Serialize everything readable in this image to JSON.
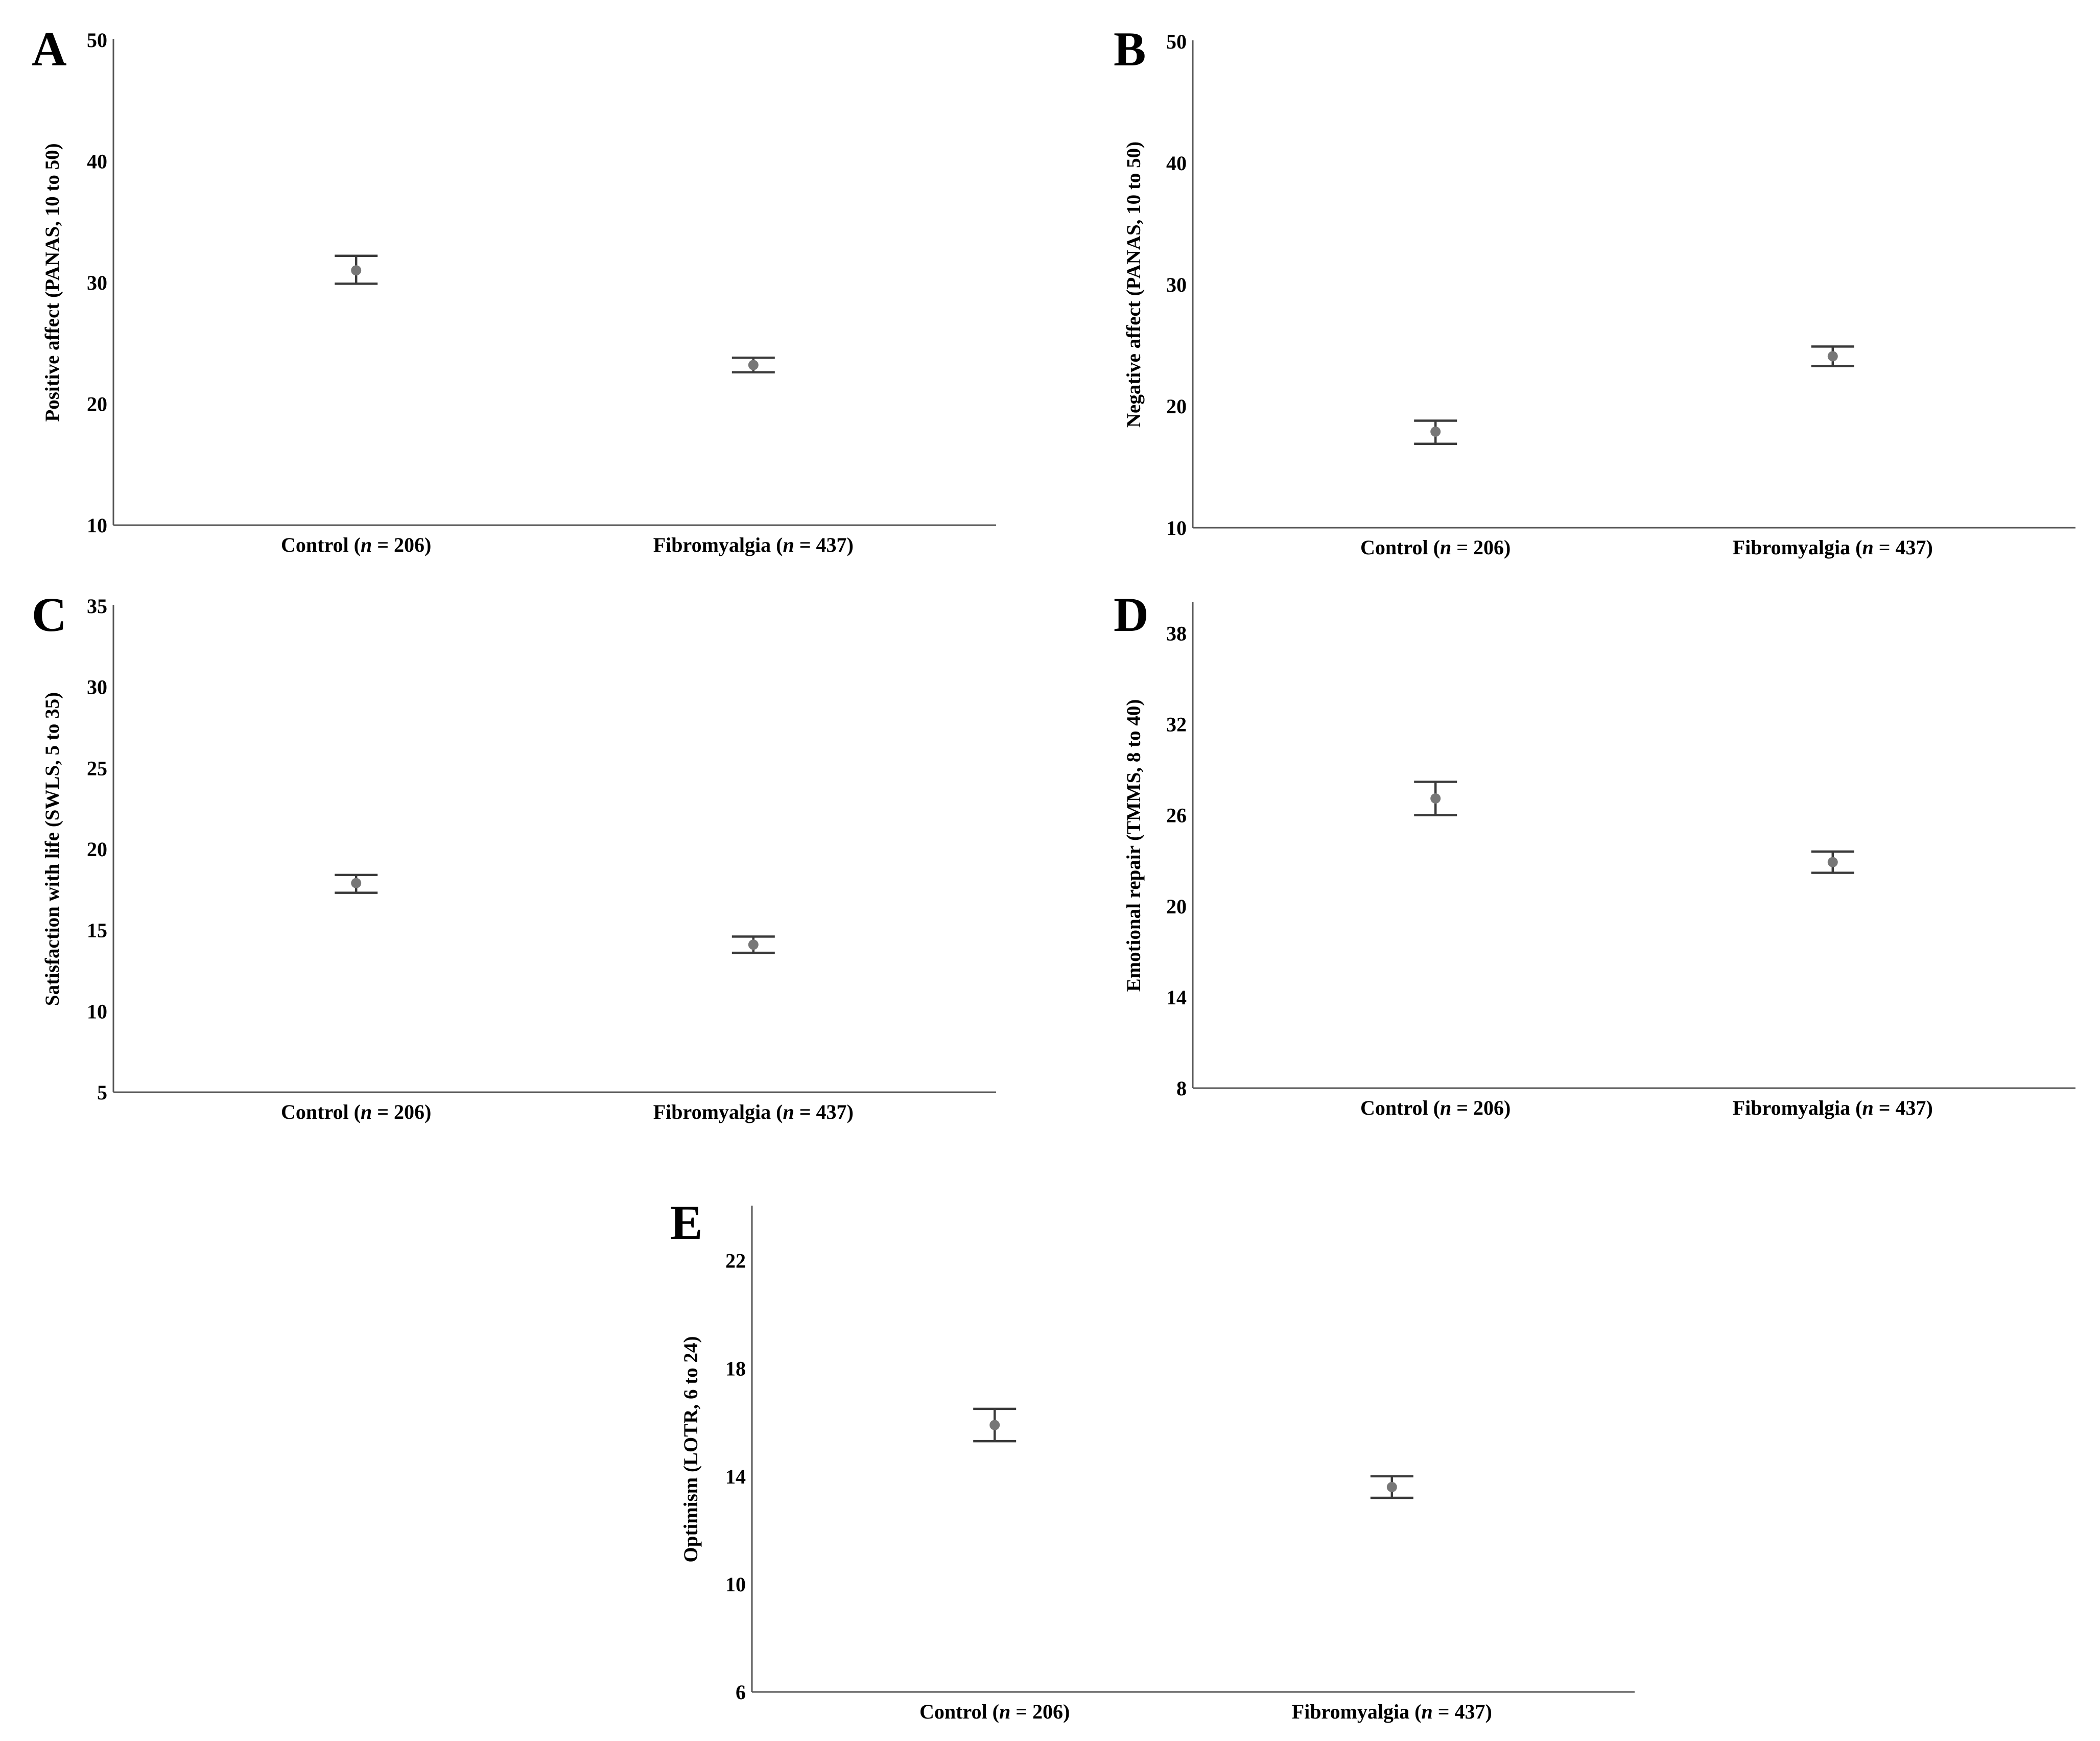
{
  "chart_data": [
    {
      "panel": "A",
      "type": "scatter",
      "error_bars": true,
      "categories": [
        "Control",
        "Fibromyalgia"
      ],
      "category_ns": [
        "206",
        "437"
      ],
      "ylabel": "Positive affect (PANAS, 10 to 50)",
      "ylim": [
        10,
        50
      ],
      "yticks": [
        10,
        20,
        30,
        40,
        50
      ],
      "means": [
        31.0,
        23.2
      ],
      "ci_low": [
        29.9,
        22.6
      ],
      "ci_high": [
        32.2,
        23.8
      ]
    },
    {
      "panel": "B",
      "type": "scatter",
      "error_bars": true,
      "categories": [
        "Control",
        "Fibromyalgia"
      ],
      "category_ns": [
        "206",
        "437"
      ],
      "ylabel": "Negative affect (PANAS, 10 to 50)",
      "ylim": [
        10,
        50
      ],
      "yticks": [
        10,
        20,
        30,
        40,
        50
      ],
      "means": [
        17.9,
        24.1
      ],
      "ci_low": [
        16.9,
        23.3
      ],
      "ci_high": [
        18.8,
        24.9
      ]
    },
    {
      "panel": "C",
      "type": "scatter",
      "error_bars": true,
      "categories": [
        "Control",
        "Fibromyalgia"
      ],
      "category_ns": [
        "206",
        "437"
      ],
      "ylabel": "Satisfaction with life (SWLS, 5 to 35)",
      "ylim": [
        5,
        35
      ],
      "yticks": [
        5,
        10,
        15,
        20,
        25,
        30,
        35
      ],
      "means": [
        17.9,
        14.1
      ],
      "ci_low": [
        17.3,
        13.6
      ],
      "ci_high": [
        18.4,
        14.6
      ]
    },
    {
      "panel": "D",
      "type": "scatter",
      "error_bars": true,
      "categories": [
        "Control",
        "Fibromyalgia"
      ],
      "category_ns": [
        "206",
        "437"
      ],
      "ylabel": "Emotional repair (TMMS, 8 to 40)",
      "ylim": [
        8,
        40
      ],
      "yticks": [
        8,
        14,
        20,
        26,
        32,
        38
      ],
      "means": [
        27.1,
        22.9
      ],
      "ci_low": [
        26.0,
        22.2
      ],
      "ci_high": [
        28.2,
        23.6
      ]
    },
    {
      "panel": "E",
      "type": "scatter",
      "error_bars": true,
      "categories": [
        "Control",
        "Fibromyalgia"
      ],
      "category_ns": [
        "206",
        "437"
      ],
      "ylabel": "Optimism (LOTR, 6 to 24)",
      "ylim": [
        6,
        24
      ],
      "yticks": [
        6,
        10,
        14,
        18,
        22
      ],
      "means": [
        15.9,
        13.6
      ],
      "ci_low": [
        15.3,
        13.2
      ],
      "ci_high": [
        16.5,
        14.0
      ]
    }
  ],
  "labels": {
    "n_symbol": "n",
    "equals": " = ",
    "close_paren": ")"
  }
}
